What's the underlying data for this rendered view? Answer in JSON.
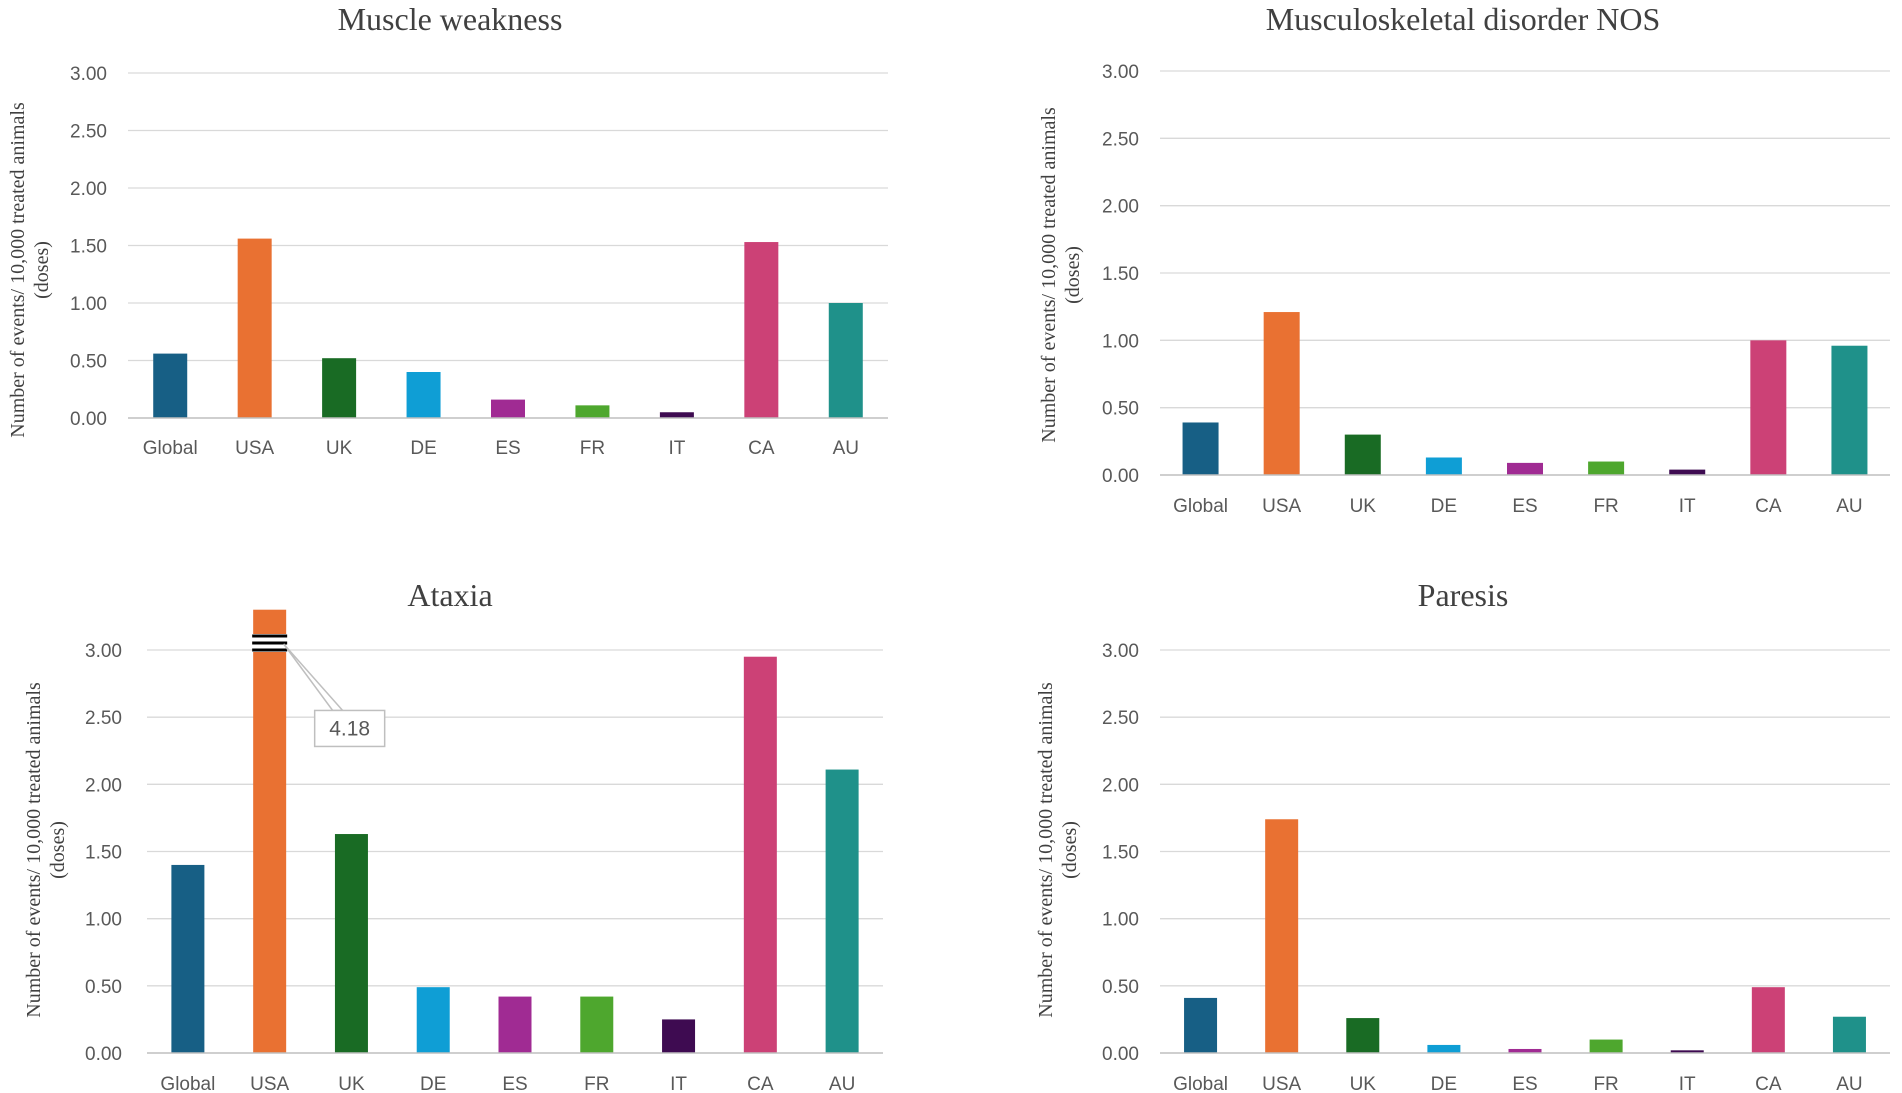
{
  "chart_data": [
    {
      "type": "bar",
      "title": "Muscle weakness",
      "ylabel_lines": [
        "Number of events/ 10,000 treated animals",
        "(doses)"
      ],
      "xlabel": "",
      "categories": [
        "Global",
        "USA",
        "UK",
        "DE",
        "ES",
        "FR",
        "IT",
        "CA",
        "AU"
      ],
      "values": [
        0.56,
        1.56,
        0.52,
        0.4,
        0.16,
        0.11,
        0.05,
        1.53,
        1.0
      ],
      "colors": [
        "#175f85",
        "#e97132",
        "#196b24",
        "#0f9ed5",
        "#a02b93",
        "#4ea72e",
        "#3e0b51",
        "#cc4176",
        "#1f918a"
      ],
      "yticks": [
        "0.00",
        "0.50",
        "1.00",
        "1.50",
        "2.00",
        "2.50",
        "3.00"
      ],
      "ylim": [
        0,
        3
      ],
      "grid": true,
      "legend": "none"
    },
    {
      "type": "bar",
      "title": "Musculoskeletal disorder NOS",
      "ylabel_lines": [
        "Number of events/ 10,000 treated animals",
        "(doses)"
      ],
      "xlabel": "",
      "categories": [
        "Global",
        "USA",
        "UK",
        "DE",
        "ES",
        "FR",
        "IT",
        "CA",
        "AU"
      ],
      "values": [
        0.39,
        1.21,
        0.3,
        0.13,
        0.09,
        0.1,
        0.04,
        1.0,
        0.96
      ],
      "colors": [
        "#175f85",
        "#e97132",
        "#196b24",
        "#0f9ed5",
        "#a02b93",
        "#4ea72e",
        "#3e0b51",
        "#cc4176",
        "#1f918a"
      ],
      "yticks": [
        "0.00",
        "0.50",
        "1.00",
        "1.50",
        "2.00",
        "2.50",
        "3.00"
      ],
      "ylim": [
        0,
        3
      ],
      "grid": true,
      "legend": "none"
    },
    {
      "type": "bar",
      "title": "Ataxia",
      "ylabel_lines": [
        "Number of events/ 10,000 treated animals",
        "(doses)"
      ],
      "xlabel": "",
      "categories": [
        "Global",
        "USA",
        "UK",
        "DE",
        "ES",
        "FR",
        "IT",
        "CA",
        "AU"
      ],
      "values": [
        1.4,
        4.18,
        1.63,
        0.49,
        0.42,
        0.42,
        0.25,
        2.95,
        2.11
      ],
      "colors": [
        "#175f85",
        "#e97132",
        "#196b24",
        "#0f9ed5",
        "#a02b93",
        "#4ea72e",
        "#3e0b51",
        "#cc4176",
        "#1f918a"
      ],
      "yticks": [
        "0.00",
        "0.50",
        "1.00",
        "1.50",
        "2.00",
        "2.50",
        "3.00"
      ],
      "ylim": [
        0,
        3
      ],
      "grid": true,
      "legend": "none",
      "axis_break": {
        "category": "USA",
        "drawn_to": 3.3,
        "label": "4.18"
      }
    },
    {
      "type": "bar",
      "title": "Paresis",
      "ylabel_lines": [
        "Number of events/ 10,000 treated animals",
        "(doses)"
      ],
      "xlabel": "",
      "categories": [
        "Global",
        "USA",
        "UK",
        "DE",
        "ES",
        "FR",
        "IT",
        "CA",
        "AU"
      ],
      "values": [
        0.41,
        1.74,
        0.26,
        0.06,
        0.03,
        0.1,
        0.02,
        0.49,
        0.27
      ],
      "colors": [
        "#175f85",
        "#e97132",
        "#196b24",
        "#0f9ed5",
        "#a02b93",
        "#4ea72e",
        "#3e0b51",
        "#cc4176",
        "#1f918a"
      ],
      "yticks": [
        "0.00",
        "0.50",
        "1.00",
        "1.50",
        "2.00",
        "2.50",
        "3.00"
      ],
      "ylim": [
        0,
        3
      ],
      "grid": true,
      "legend": "none"
    }
  ]
}
